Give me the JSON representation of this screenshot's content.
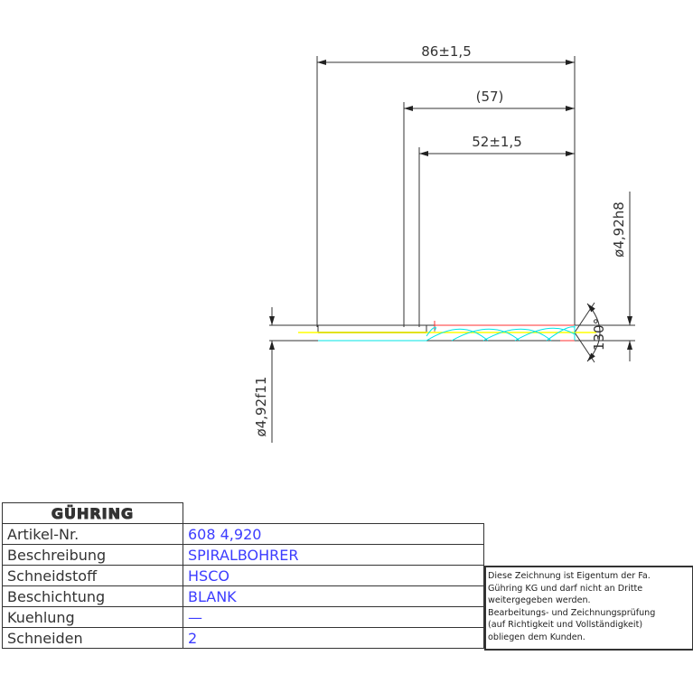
{
  "drawing": {
    "dims": {
      "overall": "86±1,5",
      "ref": "(57)",
      "flute": "52±1,5",
      "shank_dia": "ø4,92f11",
      "body_dia": "ø4,92h8",
      "point_angle": "130°"
    },
    "colors": {
      "lines": "#333333",
      "flute": "#00e5e5",
      "center": "#ffff00",
      "edge": "#ff0000"
    }
  },
  "title_block": {
    "logo": "GÜHRING",
    "rows": [
      {
        "label": "Artikel-Nr.",
        "value": "608 4,920"
      },
      {
        "label": "Beschreibung",
        "value": "SPIRALBOHRER"
      },
      {
        "label": "Schneidstoff",
        "value": "HSCO"
      },
      {
        "label": "Beschichtung",
        "value": "BLANK"
      },
      {
        "label": "Kuehlung",
        "value": "—"
      },
      {
        "label": "Schneiden",
        "value": "2"
      }
    ],
    "note": [
      "Diese Zeichnung ist Eigentum der Fa.",
      "Gühring KG und darf nicht an Dritte",
      "weitergegeben werden.",
      "Bearbeitungs- und Zeichnungsprüfung",
      "(auf Richtigkeit und Vollständigkeit)",
      "obliegen dem Kunden."
    ]
  }
}
